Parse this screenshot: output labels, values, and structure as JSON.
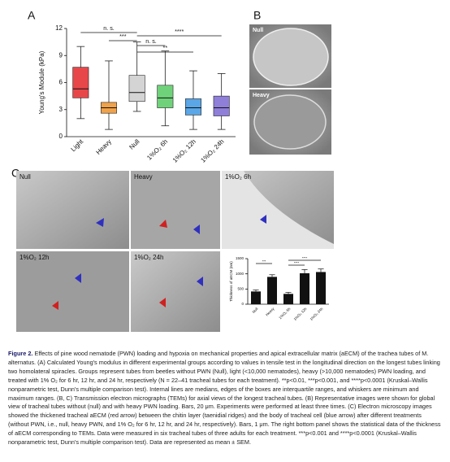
{
  "chart_data": [
    {
      "type": "box",
      "panel": "A",
      "ylabel": "Young's Module (kPa)",
      "categories": [
        "Light",
        "Heavy",
        "Null",
        "1%O₂ 6h",
        "1%O₂ 12h",
        "1%O₂ 24h"
      ],
      "colors": [
        "#e8474a",
        "#f0a24a",
        "#d4d4d4",
        "#6fd27a",
        "#5aa6e6",
        "#8f7fd8"
      ],
      "boxes": [
        {
          "min": 2,
          "q1": 4.3,
          "median": 5.3,
          "q3": 7.7,
          "max": 10
        },
        {
          "min": 0.8,
          "q1": 2.6,
          "median": 3.2,
          "q3": 3.8,
          "max": 8.4
        },
        {
          "min": 2.8,
          "q1": 3.9,
          "median": 4.9,
          "q3": 6.8,
          "max": 10.5
        },
        {
          "min": 1.2,
          "q1": 3.2,
          "median": 4.3,
          "q3": 5.7,
          "max": 9.5
        },
        {
          "min": 0.8,
          "q1": 2.4,
          "median": 3.2,
          "q3": 4.2,
          "max": 7.3
        },
        {
          "min": 0.8,
          "q1": 2.3,
          "median": 3.2,
          "q3": 4.5,
          "max": 7.0
        }
      ],
      "ylim": [
        0,
        12
      ],
      "yticks": [
        0,
        3,
        6,
        9,
        12
      ],
      "annotations": [
        "n. s.",
        "****",
        "***",
        "n. s.",
        "**"
      ]
    },
    {
      "type": "bar",
      "ylabel": "Thickness of aECM (nm)",
      "categories": [
        "Null",
        "Heavy",
        "1%O₂ 6h",
        "1%O₂ 12h",
        "1%O₂ 24h"
      ],
      "values": [
        420,
        900,
        340,
        1020,
        1060
      ],
      "errors": [
        50,
        70,
        50,
        120,
        100
      ],
      "color": "#111111",
      "ylim": [
        0,
        1500
      ],
      "yticks": [
        0,
        500,
        1000,
        1500
      ],
      "annotations": [
        "***",
        "****",
        "****"
      ]
    }
  ],
  "panel_b": {
    "letter": "B",
    "images": [
      "Null",
      "Heavy"
    ]
  },
  "panel_c": {
    "letter": "C",
    "images": [
      "Null",
      "Heavy",
      "1%O₂ 6h",
      "1%O₂ 12h",
      "1%O₂ 24h"
    ]
  },
  "caption": {
    "label": "Figure 2.",
    "text": "Effects of pine wood nematode (PWN) loading and hypoxia on mechanical properties and apical extracellular matrix (aECM) of the trachea tubes of M. alternatus. (A) Calculated Young's modulus in different experimental groups according to values in tensile test in the longitudinal direction on the longest tubes linking two homolateral spiracles. Groups represent tubes from beetles without PWN (Null), light (<10,000 nematodes), heavy (>10,000 nematodes) PWN loading, and treated with 1% O₂ for 6 hr, 12 hr, and 24 hr, respectively (N = 22–41 tracheal tubes for each treatment). **p<0.01, ***p<0.001, and ****p<0.0001 (Kruskal–Wallis nonparametric test, Dunn's multiple comparison test). Internal lines are medians, edges of the boxes are interquartile ranges, and whiskers are minimum and maximum ranges. (B, C) Transmission electron micrographs (TEMs) for axial views of the longest tracheal tubes. (B) Representative images were shown for global view of tracheal tubes without (null) and with heavy PWN loading. Bars, 20 μm. Experiments were performed at least three times. (C) Electron microscopy images showed the thickened tracheal aECM (red arrow) between the chitin layer (taenidial ridges) and the body of tracheal cell (blue arrow) after different treatments (without PWN, i.e., null, heavy PWN, and 1% O₂ for 6 hr, 12 hr, and 24 hr, respectively). Bars, 1 μm. The right bottom panel shows the statistical data of the thickness of aECM corresponding to TEMs. Data were measured in six tracheal tubes of three adults for each treatment. ***p<0.001 and ****p<0.0001 (Kruskal–Wallis nonparametric test, Dunn's multiple comparison test). Data are represented as mean ± SEM."
  }
}
